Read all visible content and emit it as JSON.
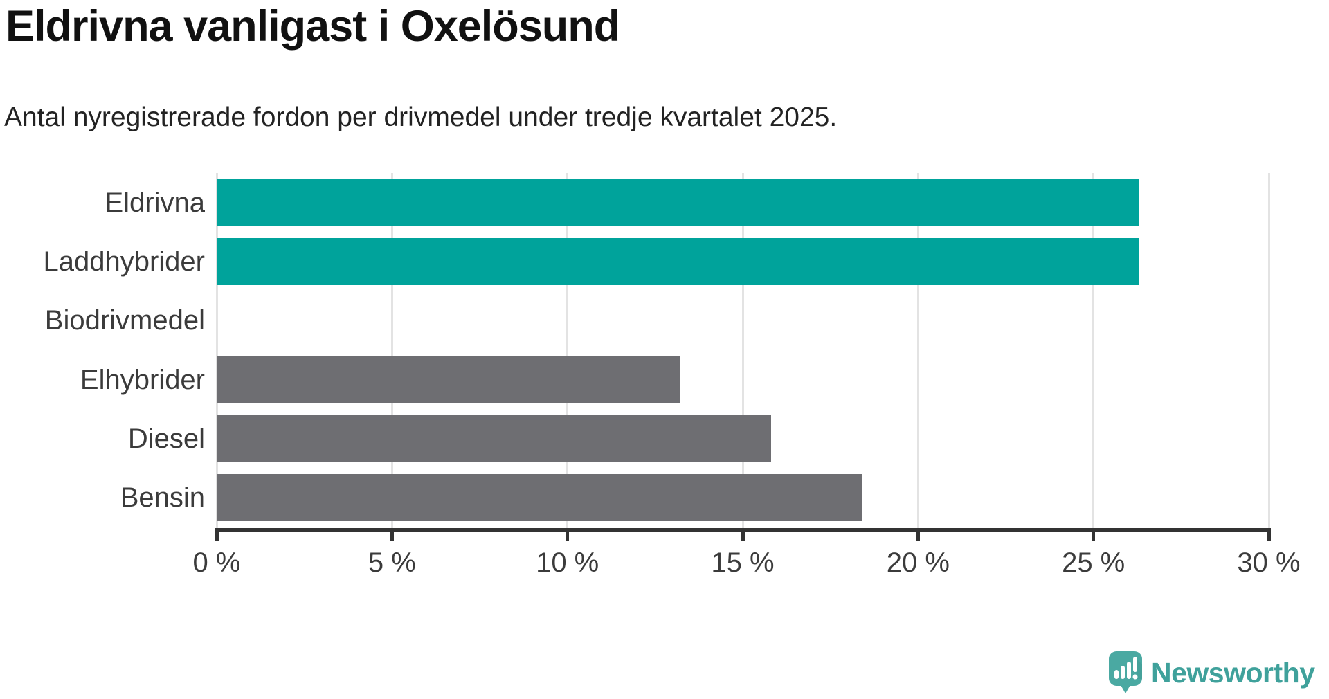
{
  "header": {
    "title": "Eldrivna vanligast i Oxelösund",
    "subtitle": "Antal nyregistrerade fordon per drivmedel under tredje kvartalet 2025."
  },
  "chart_data": {
    "type": "bar",
    "orientation": "horizontal",
    "title": "Eldrivna vanligast i Oxelösund",
    "subtitle": "Antal nyregistrerade fordon per drivmedel under tredje kvartalet 2025.",
    "categories": [
      "Eldrivna",
      "Laddhybrider",
      "Biodrivmedel",
      "Elhybrider",
      "Diesel",
      "Bensin"
    ],
    "values": [
      26.3,
      26.3,
      0,
      13.2,
      15.8,
      18.4
    ],
    "value_unit": "%",
    "bar_colors": [
      "#00a39b",
      "#00a39b",
      "#6e6e72",
      "#6e6e72",
      "#6e6e72",
      "#6e6e72"
    ],
    "xlim": [
      0,
      30
    ],
    "x_ticks": [
      0,
      5,
      10,
      15,
      20,
      25,
      30
    ],
    "x_tick_labels": [
      "0 %",
      "5 %",
      "10 %",
      "15 %",
      "20 %",
      "25 %",
      "30 %"
    ],
    "grid": true,
    "legend_position": "none"
  },
  "branding": {
    "logo_text": "Newsworthy"
  },
  "theme": {
    "background": "#ffffff",
    "accent": "#00a39b",
    "bar_gray": "#6e6e72",
    "axis": "#333333",
    "grid": "#e3e3e3",
    "text_dark": "#111111",
    "text_body": "#222222",
    "label": "#3b3b3b",
    "logo_fill": "#4aa9a2",
    "logo_shadow": "#3d938c",
    "logo_text": "#3fa19b"
  }
}
